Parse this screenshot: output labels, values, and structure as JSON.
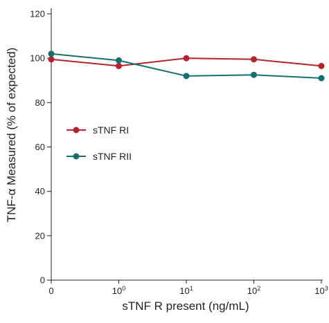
{
  "chart_data": {
    "type": "line",
    "x": [
      "0",
      "10^0",
      "10^1",
      "10^2",
      "10^3"
    ],
    "x_tick_labels": [
      {
        "base": "0",
        "exp": ""
      },
      {
        "base": "10",
        "exp": "0"
      },
      {
        "base": "10",
        "exp": "1"
      },
      {
        "base": "10",
        "exp": "2"
      },
      {
        "base": "10",
        "exp": "3"
      }
    ],
    "xlabel": "sTNF R present (ng/mL)",
    "ylabel": "TNF-α Measured (% of expected)",
    "ylim": [
      0,
      120
    ],
    "yticks": [
      0,
      20,
      40,
      60,
      80,
      100,
      120
    ],
    "grid": false,
    "legend_position": "center-left",
    "series": [
      {
        "name": "sTNF RI",
        "color": "#b5232b",
        "values": [
          99.5,
          96.5,
          100,
          99.5,
          96.5
        ]
      },
      {
        "name": "sTNF RII",
        "color": "#13706f",
        "values": [
          102,
          99,
          92,
          92.5,
          91
        ]
      }
    ]
  }
}
